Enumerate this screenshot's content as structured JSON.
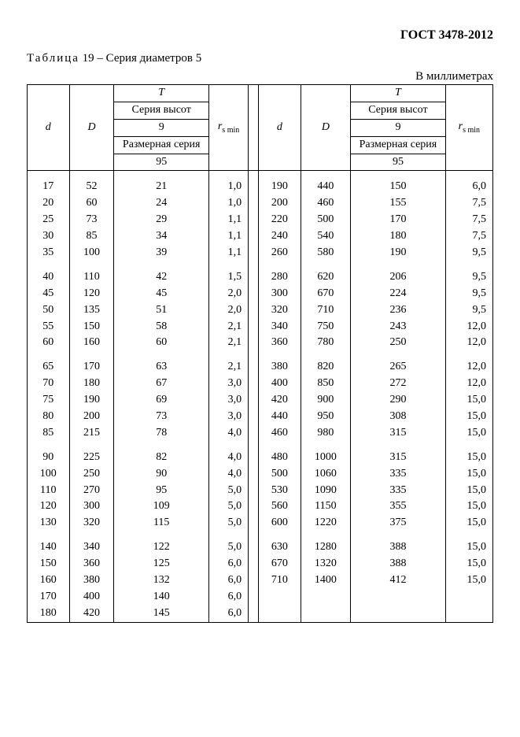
{
  "doc_id": "ГОСТ 3478-2012",
  "caption_spaced": "Таблица",
  "caption_rest": "  19 – Серия диаметров 5",
  "units": "В миллиметрах",
  "header": {
    "d": "d",
    "D": "D",
    "T": "T",
    "series_heights": "Серия высот",
    "nine": "9",
    "dim_series": "Размерная серия",
    "ninetyfive": "95",
    "rsmin_r": "r",
    "rsmin_sub": "s min"
  },
  "groups_left": [
    [
      {
        "d": "17",
        "D": "52",
        "T": "21",
        "r": "1,0"
      },
      {
        "d": "20",
        "D": "60",
        "T": "24",
        "r": "1,0"
      },
      {
        "d": "25",
        "D": "73",
        "T": "29",
        "r": "1,1"
      },
      {
        "d": "30",
        "D": "85",
        "T": "34",
        "r": "1,1"
      },
      {
        "d": "35",
        "D": "100",
        "T": "39",
        "r": "1,1"
      }
    ],
    [
      {
        "d": "40",
        "D": "110",
        "T": "42",
        "r": "1,5"
      },
      {
        "d": "45",
        "D": "120",
        "T": "45",
        "r": "2,0"
      },
      {
        "d": "50",
        "D": "135",
        "T": "51",
        "r": "2,0"
      },
      {
        "d": "55",
        "D": "150",
        "T": "58",
        "r": "2,1"
      },
      {
        "d": "60",
        "D": "160",
        "T": "60",
        "r": "2,1"
      }
    ],
    [
      {
        "d": "65",
        "D": "170",
        "T": "63",
        "r": "2,1"
      },
      {
        "d": "70",
        "D": "180",
        "T": "67",
        "r": "3,0"
      },
      {
        "d": "75",
        "D": "190",
        "T": "69",
        "r": "3,0"
      },
      {
        "d": "80",
        "D": "200",
        "T": "73",
        "r": "3,0"
      },
      {
        "d": "85",
        "D": "215",
        "T": "78",
        "r": "4,0"
      }
    ],
    [
      {
        "d": "90",
        "D": "225",
        "T": "82",
        "r": "4,0"
      },
      {
        "d": "100",
        "D": "250",
        "T": "90",
        "r": "4,0"
      },
      {
        "d": "110",
        "D": "270",
        "T": "95",
        "r": "5,0"
      },
      {
        "d": "120",
        "D": "300",
        "T": "109",
        "r": "5,0"
      },
      {
        "d": "130",
        "D": "320",
        "T": "115",
        "r": "5,0"
      }
    ],
    [
      {
        "d": "140",
        "D": "340",
        "T": "122",
        "r": "5,0"
      },
      {
        "d": "150",
        "D": "360",
        "T": "125",
        "r": "6,0"
      },
      {
        "d": "160",
        "D": "380",
        "T": "132",
        "r": "6,0"
      },
      {
        "d": "170",
        "D": "400",
        "T": "140",
        "r": "6,0"
      },
      {
        "d": "180",
        "D": "420",
        "T": "145",
        "r": "6,0"
      }
    ]
  ],
  "groups_right": [
    [
      {
        "d": "190",
        "D": "440",
        "T": "150",
        "r": "6,0"
      },
      {
        "d": "200",
        "D": "460",
        "T": "155",
        "r": "7,5"
      },
      {
        "d": "220",
        "D": "500",
        "T": "170",
        "r": "7,5"
      },
      {
        "d": "240",
        "D": "540",
        "T": "180",
        "r": "7,5"
      },
      {
        "d": "260",
        "D": "580",
        "T": "190",
        "r": "9,5"
      }
    ],
    [
      {
        "d": "280",
        "D": "620",
        "T": "206",
        "r": "9,5"
      },
      {
        "d": "300",
        "D": "670",
        "T": "224",
        "r": "9,5"
      },
      {
        "d": "320",
        "D": "710",
        "T": "236",
        "r": "9,5"
      },
      {
        "d": "340",
        "D": "750",
        "T": "243",
        "r": "12,0"
      },
      {
        "d": "360",
        "D": "780",
        "T": "250",
        "r": "12,0"
      }
    ],
    [
      {
        "d": "380",
        "D": "820",
        "T": "265",
        "r": "12,0"
      },
      {
        "d": "400",
        "D": "850",
        "T": "272",
        "r": "12,0"
      },
      {
        "d": "420",
        "D": "900",
        "T": "290",
        "r": "15,0"
      },
      {
        "d": "440",
        "D": "950",
        "T": "308",
        "r": "15,0"
      },
      {
        "d": "460",
        "D": "980",
        "T": "315",
        "r": "15,0"
      }
    ],
    [
      {
        "d": "480",
        "D": "1000",
        "T": "315",
        "r": "15,0"
      },
      {
        "d": "500",
        "D": "1060",
        "T": "335",
        "r": "15,0"
      },
      {
        "d": "530",
        "D": "1090",
        "T": "335",
        "r": "15,0"
      },
      {
        "d": "560",
        "D": "1150",
        "T": "355",
        "r": "15,0"
      },
      {
        "d": "600",
        "D": "1220",
        "T": "375",
        "r": "15,0"
      }
    ],
    [
      {
        "d": "630",
        "D": "1280",
        "T": "388",
        "r": "15,0"
      },
      {
        "d": "670",
        "D": "1320",
        "T": "388",
        "r": "15,0"
      },
      {
        "d": "710",
        "D": "1400",
        "T": "412",
        "r": "15,0"
      },
      {
        "d": "",
        "D": "",
        "T": "",
        "r": ""
      },
      {
        "d": "",
        "D": "",
        "T": "",
        "r": ""
      }
    ]
  ]
}
